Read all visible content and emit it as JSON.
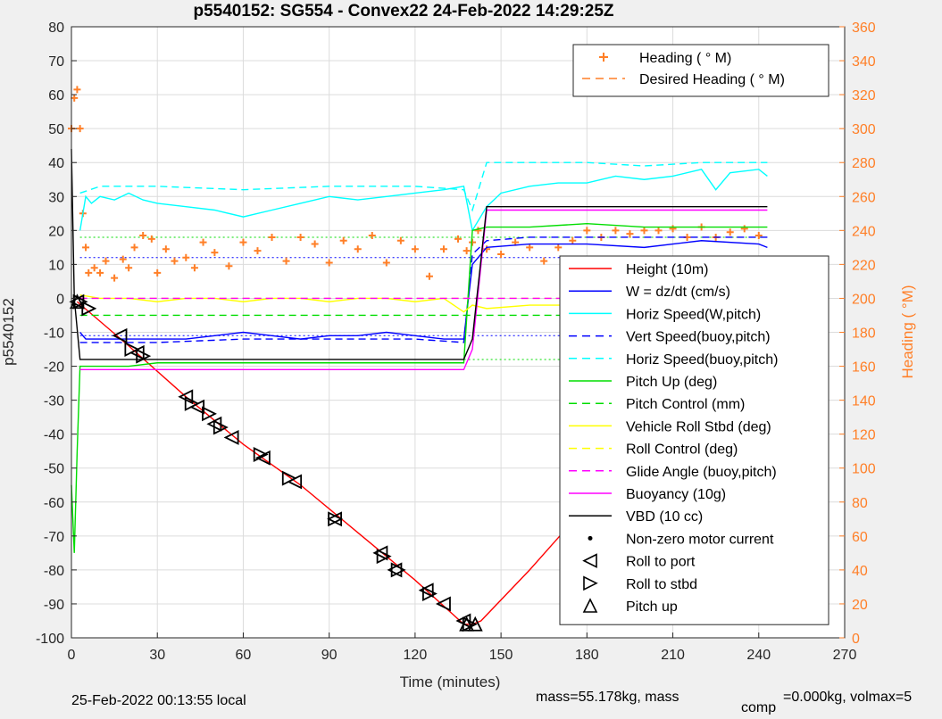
{
  "chart_data": {
    "type": "line",
    "title": "p5540152: SG554 - Convex22 24-Feb-2022 14:29:25Z",
    "xlabel": "Time (minutes)",
    "ylabel_left": "p5540152",
    "ylabel_right": "Heading (  °M)",
    "xlim": [
      0,
      270
    ],
    "ylim_left": [
      -100,
      80
    ],
    "ylim_right": [
      0,
      360
    ],
    "x_ticks": [
      "0",
      "30",
      "60",
      "90",
      "120",
      "150",
      "180",
      "210",
      "240",
      "270"
    ],
    "y_ticks_left": [
      "80",
      "70",
      "60",
      "50",
      "40",
      "30",
      "20",
      "10",
      "0",
      "-10",
      "-20",
      "-30",
      "-40",
      "-50",
      "-60",
      "-70",
      "-80",
      "-90",
      "-100"
    ],
    "y_ticks_right": [
      "360",
      "340",
      "320",
      "300",
      "280",
      "260",
      "240",
      "220",
      "200",
      "180",
      "160",
      "140",
      "120",
      "100",
      "80",
      "60",
      "40",
      "20",
      "0"
    ],
    "grid": true,
    "legend_top": [
      {
        "label": "Heading (  ° M)",
        "color": "#ff7f27",
        "style": "plus"
      },
      {
        "label": "Desired Heading (    ° M)",
        "color": "#ff7f27",
        "style": "dash"
      }
    ],
    "legend_main": [
      {
        "label": "Height (10m)",
        "color": "#ff0000",
        "style": "solid"
      },
      {
        "label": "W = dz/dt (cm/s)",
        "color": "#0000ff",
        "style": "solid"
      },
      {
        "label": "Horiz Speed(W,pitch)",
        "color": "#00ffff",
        "style": "solid"
      },
      {
        "label": "Vert Speed(buoy,pitch)",
        "color": "#0000ff",
        "style": "dash"
      },
      {
        "label": "Horiz Speed(buoy,pitch)",
        "color": "#00ffff",
        "style": "dash"
      },
      {
        "label": "Pitch Up (deg)",
        "color": "#00dd00",
        "style": "solid"
      },
      {
        "label": "Pitch Control (mm)",
        "color": "#00dd00",
        "style": "dash"
      },
      {
        "label": "Vehicle Roll Stbd (deg)",
        "color": "#ffff00",
        "style": "solid"
      },
      {
        "label": "Roll Control (deg)",
        "color": "#ffff00",
        "style": "dash"
      },
      {
        "label": "Glide Angle (buoy,pitch)",
        "color": "#ff00ff",
        "style": "dash"
      },
      {
        "label": "Buoyancy (10g)",
        "color": "#ff00ff",
        "style": "solid"
      },
      {
        "label": "VBD (10 cc)",
        "color": "#000000",
        "style": "solid"
      },
      {
        "label": "Non-zero motor current",
        "color": "#000000",
        "style": "dot"
      },
      {
        "label": "Roll to port",
        "color": "#000000",
        "style": "tri-left"
      },
      {
        "label": "Roll to stbd",
        "color": "#000000",
        "style": "tri-right"
      },
      {
        "label": "Pitch up",
        "color": "#000000",
        "style": "tri-up"
      }
    ],
    "series": [
      {
        "name": "Height (10m)",
        "axis": "left",
        "color": "#ff0000",
        "x": [
          2,
          20,
          40,
          60,
          80,
          100,
          120,
          137,
          140,
          143,
          160,
          180,
          200,
          220,
          240,
          243
        ],
        "y": [
          -1,
          -14,
          -29,
          -43,
          -55,
          -69,
          -83,
          -96,
          -96,
          -95,
          -80,
          -61,
          -42,
          -22,
          -3,
          -1
        ]
      },
      {
        "name": "Heading (  ° M)",
        "axis": "right",
        "color": "#ff7f27",
        "x": [
          0,
          1,
          2,
          3,
          4,
          5,
          6,
          8,
          10,
          12,
          15,
          18,
          20,
          22,
          25,
          28,
          30,
          33,
          36,
          40,
          43,
          46,
          50,
          55,
          60,
          65,
          70,
          75,
          80,
          85,
          90,
          95,
          100,
          105,
          110,
          115,
          120,
          125,
          130,
          135,
          138,
          140,
          142,
          145,
          150,
          155,
          160,
          165,
          170,
          175,
          180,
          185,
          190,
          195,
          200,
          205,
          210,
          215,
          220,
          225,
          230,
          235,
          240,
          243
        ],
        "y": [
          300,
          318,
          323,
          300,
          250,
          230,
          215,
          218,
          215,
          222,
          212,
          223,
          218,
          230,
          237,
          235,
          215,
          229,
          222,
          224,
          218,
          233,
          227,
          219,
          233,
          228,
          236,
          222,
          236,
          232,
          221,
          234,
          229,
          237,
          221,
          234,
          229,
          213,
          229,
          235,
          228,
          233,
          240,
          229,
          226,
          233,
          230,
          222,
          230,
          234,
          240,
          236,
          240,
          238,
          240,
          240,
          241,
          236,
          242,
          236,
          239,
          241,
          237,
          222
        ]
      },
      {
        "name": "Horiz Speed(W,pitch)",
        "axis": "left",
        "color": "#00ffff",
        "x": [
          3,
          5,
          7,
          10,
          15,
          20,
          25,
          30,
          40,
          50,
          60,
          70,
          80,
          90,
          100,
          110,
          120,
          130,
          137,
          140,
          145,
          150,
          160,
          170,
          180,
          190,
          200,
          210,
          220,
          225,
          230,
          240,
          243
        ],
        "y": [
          20,
          30,
          28,
          30,
          29,
          31,
          29,
          28,
          27,
          26,
          24,
          26,
          28,
          30,
          29,
          30,
          31,
          32,
          33,
          20,
          27,
          31,
          33,
          34,
          34,
          36,
          35,
          36,
          38,
          32,
          37,
          38,
          36
        ]
      },
      {
        "name": "Horiz Speed(buoy,pitch)",
        "axis": "left",
        "color": "#00ffff",
        "x": [
          3,
          10,
          30,
          60,
          90,
          120,
          137,
          140,
          145,
          160,
          180,
          200,
          220,
          240,
          243
        ],
        "y": [
          31,
          33,
          33,
          32,
          33,
          33,
          32,
          26,
          40,
          40,
          40,
          39,
          40,
          40,
          40
        ]
      },
      {
        "name": "W = dz/dt (cm/s)",
        "axis": "left",
        "color": "#0000ff",
        "x": [
          3,
          5,
          10,
          20,
          30,
          40,
          50,
          60,
          70,
          80,
          90,
          100,
          110,
          120,
          130,
          137,
          140,
          145,
          160,
          180,
          200,
          220,
          240,
          243
        ],
        "y": [
          -10,
          -12,
          -12,
          -12,
          -12,
          -12,
          -11,
          -10,
          -11,
          -12,
          -11,
          -11,
          -10,
          -11,
          -12,
          -12,
          10,
          15,
          16,
          16,
          15,
          17,
          16,
          15
        ]
      },
      {
        "name": "Vert Speed(buoy,pitch)",
        "axis": "left",
        "color": "#0000ff",
        "x": [
          3,
          10,
          30,
          60,
          90,
          120,
          137,
          140,
          145,
          160,
          180,
          200,
          220,
          240,
          243
        ],
        "y": [
          -13,
          -13,
          -13,
          -12,
          -12,
          -12,
          -13,
          13,
          17,
          18,
          18,
          18,
          18,
          18,
          18
        ]
      },
      {
        "name": "Pitch Up (deg)",
        "axis": "left",
        "color": "#00dd00",
        "x": [
          0,
          1,
          2,
          3,
          5,
          10,
          20,
          30,
          40,
          50,
          60,
          70,
          80,
          90,
          100,
          110,
          120,
          130,
          137,
          140,
          145,
          150,
          160,
          180,
          200,
          220,
          240,
          243
        ],
        "y": [
          -55,
          -75,
          -45,
          -20,
          -20,
          -20,
          -20,
          -19,
          -19,
          -19,
          -19,
          -19,
          -19,
          -19,
          -19,
          -19,
          -19,
          -19,
          -19,
          20,
          21,
          21,
          21,
          22,
          21,
          21,
          21,
          21
        ]
      },
      {
        "name": "Pitch Control (mm)",
        "axis": "left",
        "color": "#00dd00",
        "x": [
          3,
          137,
          140,
          243
        ],
        "y": [
          -5,
          -5,
          -5,
          -5
        ]
      },
      {
        "name": "Vehicle Roll Stbd (deg)",
        "axis": "left",
        "color": "#ffff00",
        "x": [
          3,
          10,
          20,
          30,
          40,
          50,
          60,
          70,
          80,
          90,
          100,
          110,
          120,
          130,
          137,
          140,
          145,
          160,
          180,
          200,
          220,
          240,
          243
        ],
        "y": [
          1,
          0,
          0,
          -1,
          0,
          0,
          -1,
          0,
          0,
          -1,
          0,
          0,
          -1,
          0,
          -4,
          -2,
          -3,
          -2,
          -2,
          -3,
          -2,
          -3,
          -2
        ]
      },
      {
        "name": "Roll Control (deg)",
        "axis": "left",
        "color": "#ffff00",
        "x": [
          3,
          243
        ],
        "y": [
          0,
          0
        ]
      },
      {
        "name": "Glide Angle (buoy,pitch)",
        "axis": "left",
        "color": "#ff00ff",
        "x": [
          3,
          137,
          140,
          243
        ],
        "y": [
          0,
          0,
          0,
          0
        ]
      },
      {
        "name": "Buoyancy (10g)",
        "axis": "left",
        "color": "#ff00ff",
        "x": [
          3,
          137,
          140,
          145,
          243
        ],
        "y": [
          -21,
          -21,
          -15,
          26,
          26
        ]
      },
      {
        "name": "VBD (10 cc)",
        "axis": "left",
        "color": "#000000",
        "x": [
          0,
          1,
          3,
          137,
          140,
          145,
          243
        ],
        "y": [
          44,
          0,
          -18,
          -18,
          -12,
          27,
          27
        ]
      }
    ],
    "reference_lines": [
      {
        "y": 18,
        "color": "#00dd00"
      },
      {
        "y": -18,
        "color": "#00dd00"
      },
      {
        "y": 12,
        "color": "#0000ff"
      },
      {
        "y": -11,
        "color": "#0000ff"
      }
    ],
    "markers_roll_port": {
      "x": [
        2,
        17,
        23,
        40,
        44,
        50,
        56,
        67,
        78,
        92,
        108,
        113,
        124,
        130,
        137,
        224,
        232
      ],
      "y": [
        -1,
        -11,
        -16,
        -29,
        -32,
        -37,
        -41,
        -47,
        -54,
        -65,
        -75,
        -80,
        -86,
        -90,
        -95,
        -18,
        -9
      ]
    },
    "markers_roll_stbd": {
      "x": [
        3,
        6,
        21,
        25,
        42,
        48,
        52,
        66,
        76,
        92,
        109,
        114,
        125,
        139,
        179,
        223,
        233,
        242
      ],
      "y": [
        -1,
        -3,
        -15,
        -17,
        -31,
        -34,
        -38,
        -46,
        -53,
        -65,
        -76,
        -80,
        -87,
        -96,
        -61,
        -18,
        -10,
        -1
      ]
    },
    "markers_pitch_up": {
      "x": [
        2,
        138,
        141
      ],
      "y": [
        -1,
        -96,
        -96
      ]
    },
    "footer_left": "25-Feb-2022 00:13:55 local",
    "footer_right_a": "mass=55.178kg, mass",
    "footer_right_sub": "comp",
    "footer_right_b": "=0.000kg, volmax=5"
  }
}
